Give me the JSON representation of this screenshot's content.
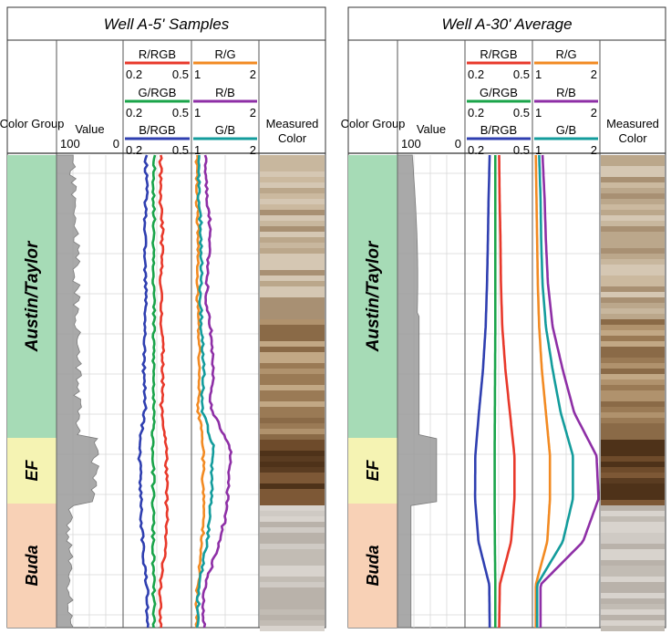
{
  "chart_data": [
    {
      "type": "well-log",
      "title": "Well A-5' Samples",
      "columns": {
        "color_group": "Color Group",
        "value": {
          "label": "Value",
          "scale_left": "100",
          "scale_right": "0"
        },
        "measured_color": "Measured Color"
      },
      "tracks": [
        {
          "name": "R/RGB",
          "color": "#e8392b",
          "scale": [
            "0.2",
            "0.5"
          ]
        },
        {
          "name": "G/RGB",
          "color": "#1aa44a",
          "scale": [
            "0.2",
            "0.5"
          ]
        },
        {
          "name": "B/RGB",
          "color": "#2f3fb0",
          "scale": [
            "0.2",
            "0.5"
          ]
        },
        {
          "name": "R/G",
          "color": "#f28a22",
          "scale": [
            "1",
            "2"
          ]
        },
        {
          "name": "R/B",
          "color": "#8e2fa6",
          "scale": [
            "1",
            "2"
          ]
        },
        {
          "name": "G/B",
          "color": "#139c9c",
          "scale": [
            "1",
            "2"
          ]
        }
      ],
      "zones": [
        {
          "name": "Austin/Taylor",
          "color": "#a6dbb6"
        },
        {
          "name": "EF",
          "color": "#f5f3b3"
        },
        {
          "name": "Buda",
          "color": "#f8d1b6"
        }
      ],
      "series": [
        {
          "name": "R/RGB",
          "values": [
            0.365,
            0.362,
            0.372,
            0.368,
            0.366,
            0.372,
            0.376,
            0.368,
            0.39,
            0.39,
            0.392,
            0.382,
            0.362,
            0.362
          ]
        },
        {
          "name": "G/RGB",
          "values": [
            0.335,
            0.335,
            0.335,
            0.336,
            0.335,
            0.334,
            0.334,
            0.333,
            0.332,
            0.332,
            0.332,
            0.332,
            0.334,
            0.335
          ]
        },
        {
          "name": "B/RGB",
          "values": [
            0.3,
            0.302,
            0.295,
            0.295,
            0.3,
            0.295,
            0.29,
            0.298,
            0.27,
            0.276,
            0.28,
            0.29,
            0.305,
            0.305
          ]
        },
        {
          "name": "R/G",
          "values": [
            1.08,
            1.08,
            1.1,
            1.09,
            1.09,
            1.11,
            1.12,
            1.1,
            1.18,
            1.17,
            1.18,
            1.15,
            1.08,
            1.08
          ]
        },
        {
          "name": "R/B",
          "values": [
            1.2,
            1.22,
            1.28,
            1.25,
            1.22,
            1.3,
            1.32,
            1.28,
            1.58,
            1.55,
            1.5,
            1.35,
            1.18,
            1.18
          ]
        },
        {
          "name": "G/B",
          "values": [
            1.12,
            1.1,
            1.14,
            1.15,
            1.13,
            1.16,
            1.18,
            1.15,
            1.32,
            1.3,
            1.28,
            1.2,
            1.1,
            1.1
          ]
        }
      ]
    },
    {
      "type": "well-log",
      "title": "Well A-30' Average",
      "columns": {
        "color_group": "Color Group",
        "value": {
          "label": "Value",
          "scale_left": "100",
          "scale_right": "0"
        },
        "measured_color": "Measured Color"
      },
      "tracks": [
        {
          "name": "R/RGB",
          "color": "#e8392b",
          "scale": [
            "0.2",
            "0.5"
          ]
        },
        {
          "name": "G/RGB",
          "color": "#1aa44a",
          "scale": [
            "0.2",
            "0.5"
          ]
        },
        {
          "name": "B/RGB",
          "color": "#2f3fb0",
          "scale": [
            "0.2",
            "0.5"
          ]
        },
        {
          "name": "R/G",
          "color": "#f28a22",
          "scale": [
            "1",
            "2"
          ]
        },
        {
          "name": "R/B",
          "color": "#8e2fa6",
          "scale": [
            "1",
            "2"
          ]
        },
        {
          "name": "G/B",
          "color": "#139c9c",
          "scale": [
            "1",
            "2"
          ]
        }
      ],
      "zones": [
        {
          "name": "Austin/Taylor",
          "color": "#a6dbb6"
        },
        {
          "name": "EF",
          "color": "#f5f3b3"
        },
        {
          "name": "Buda",
          "color": "#f8d1b6"
        }
      ],
      "series": [
        {
          "name": "R/RGB",
          "values": [
            0.352,
            0.354,
            0.358,
            0.36,
            0.366,
            0.38,
            0.4,
            0.42,
            0.42,
            0.405,
            0.355,
            0.352
          ]
        },
        {
          "name": "G/RGB",
          "values": [
            0.335,
            0.335,
            0.335,
            0.335,
            0.335,
            0.334,
            0.333,
            0.332,
            0.332,
            0.333,
            0.335,
            0.335
          ]
        },
        {
          "name": "B/RGB",
          "values": [
            0.31,
            0.305,
            0.302,
            0.298,
            0.292,
            0.28,
            0.262,
            0.246,
            0.245,
            0.26,
            0.308,
            0.31
          ]
        },
        {
          "name": "R/G",
          "values": [
            1.05,
            1.06,
            1.07,
            1.08,
            1.1,
            1.14,
            1.2,
            1.26,
            1.26,
            1.22,
            1.05,
            1.05
          ]
        },
        {
          "name": "R/B",
          "values": [
            1.15,
            1.18,
            1.2,
            1.23,
            1.3,
            1.45,
            1.62,
            1.95,
            1.98,
            1.75,
            1.12,
            1.12
          ]
        },
        {
          "name": "G/B",
          "values": [
            1.1,
            1.12,
            1.13,
            1.15,
            1.2,
            1.3,
            1.42,
            1.6,
            1.6,
            1.45,
            1.07,
            1.07
          ]
        }
      ]
    }
  ]
}
